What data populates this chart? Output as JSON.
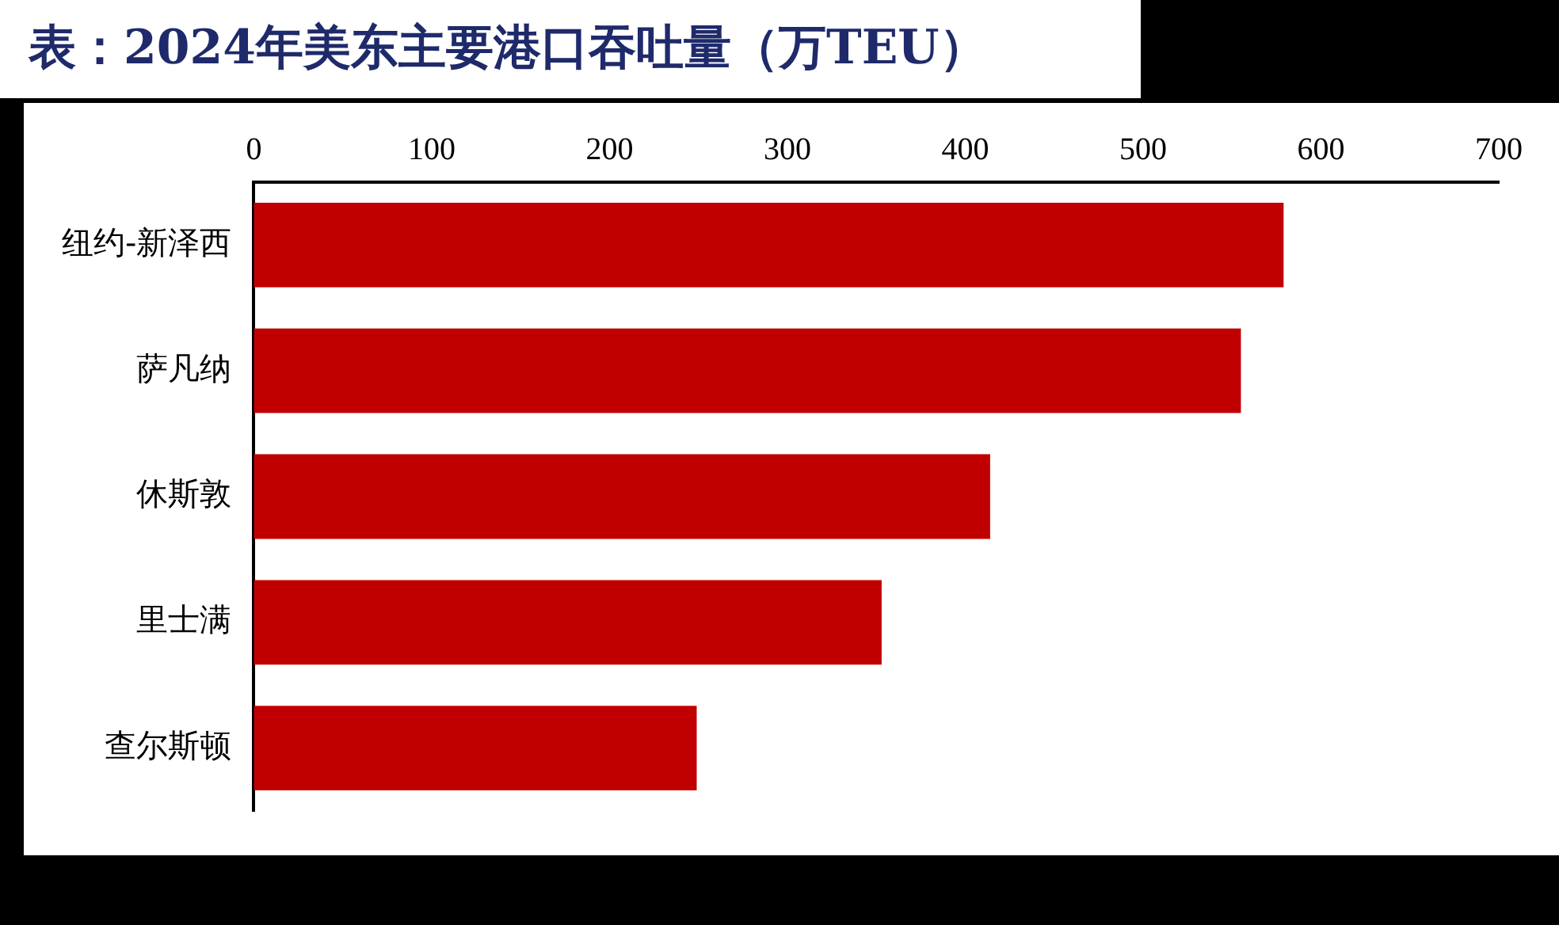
{
  "chart_data": {
    "type": "bar",
    "orientation": "horizontal",
    "title": "表：2024年美东主要港口吞吐量（万TEU）",
    "categories": [
      "纽约-新泽西",
      "萨凡纳",
      "休斯敦",
      "里士满",
      "查尔斯顿"
    ],
    "values": [
      579,
      555,
      414,
      353,
      249
    ],
    "color": "#c00000",
    "xlim": [
      0,
      700
    ],
    "xticks": [
      0,
      100,
      200,
      300,
      400,
      500,
      600,
      700
    ],
    "grid": false,
    "legend": false
  }
}
